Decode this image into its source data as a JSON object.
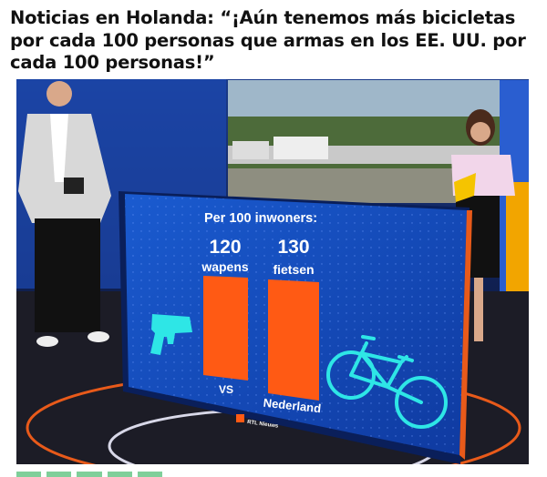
{
  "headline": "Noticias en Holanda: “¡Aún tenemos más bicicletas por cada 100 personas que armas en los EE. UU. por cada 100 personas!”",
  "tv_graphic": {
    "title": "Per 100 inwoners:",
    "bars": [
      {
        "value": "120",
        "unit": "wapens",
        "country": "VS",
        "icon": "pistol-icon"
      },
      {
        "value": "130",
        "unit": "fietsen",
        "country": "Nederland",
        "icon": "bicycle-icon"
      }
    ],
    "logo": "RTL Nieuws",
    "colors": {
      "bar": "#ff5a14",
      "screen": "#1447b8",
      "icon": "#2ee6e6"
    }
  }
}
